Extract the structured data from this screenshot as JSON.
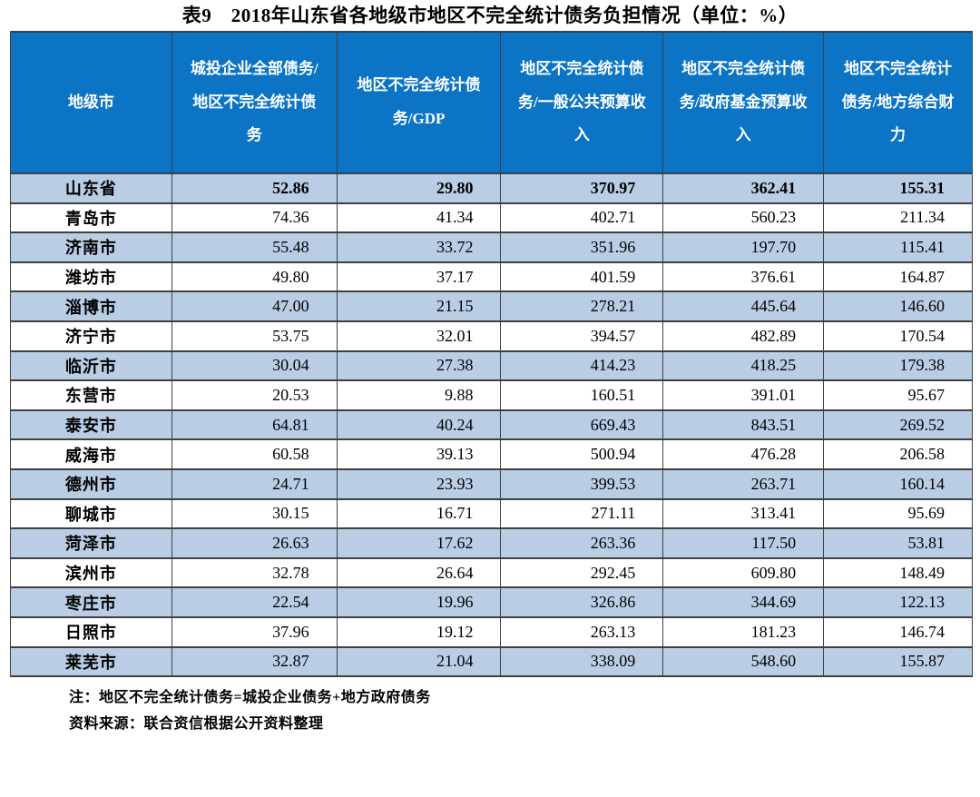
{
  "title": "表9　2018年山东省各地级市地区不完全统计债务负担情况（单位：%）",
  "table": {
    "columns": [
      "地级市",
      "城投企业全部债务/地区不完全统计债务",
      "地区不完全统计债务/GDP",
      "地区不完全统计债务/一般公共预算收入",
      "地区不完全统计债务/政府基金预算收入",
      "地区不完全统计债务/地方综合财力"
    ],
    "rows": [
      {
        "name": "山东省",
        "values": [
          "52.86",
          "29.80",
          "370.97",
          "362.41",
          "155.31"
        ],
        "bold": true
      },
      {
        "name": "青岛市",
        "values": [
          "74.36",
          "41.34",
          "402.71",
          "560.23",
          "211.34"
        ],
        "bold": false
      },
      {
        "name": "济南市",
        "values": [
          "55.48",
          "33.72",
          "351.96",
          "197.70",
          "115.41"
        ],
        "bold": false
      },
      {
        "name": "潍坊市",
        "values": [
          "49.80",
          "37.17",
          "401.59",
          "376.61",
          "164.87"
        ],
        "bold": false
      },
      {
        "name": "淄博市",
        "values": [
          "47.00",
          "21.15",
          "278.21",
          "445.64",
          "146.60"
        ],
        "bold": false
      },
      {
        "name": "济宁市",
        "values": [
          "53.75",
          "32.01",
          "394.57",
          "482.89",
          "170.54"
        ],
        "bold": false
      },
      {
        "name": "临沂市",
        "values": [
          "30.04",
          "27.38",
          "414.23",
          "418.25",
          "179.38"
        ],
        "bold": false
      },
      {
        "name": "东营市",
        "values": [
          "20.53",
          "9.88",
          "160.51",
          "391.01",
          "95.67"
        ],
        "bold": false
      },
      {
        "name": "泰安市",
        "values": [
          "64.81",
          "40.24",
          "669.43",
          "843.51",
          "269.52"
        ],
        "bold": false
      },
      {
        "name": "威海市",
        "values": [
          "60.58",
          "39.13",
          "500.94",
          "476.28",
          "206.58"
        ],
        "bold": false
      },
      {
        "name": "德州市",
        "values": [
          "24.71",
          "23.93",
          "399.53",
          "263.71",
          "160.14"
        ],
        "bold": false
      },
      {
        "name": "聊城市",
        "values": [
          "30.15",
          "16.71",
          "271.11",
          "313.41",
          "95.69"
        ],
        "bold": false
      },
      {
        "name": "菏泽市",
        "values": [
          "26.63",
          "17.62",
          "263.36",
          "117.50",
          "53.81"
        ],
        "bold": false
      },
      {
        "name": "滨州市",
        "values": [
          "32.78",
          "26.64",
          "292.45",
          "609.80",
          "148.49"
        ],
        "bold": false
      },
      {
        "name": "枣庄市",
        "values": [
          "22.54",
          "19.96",
          "326.86",
          "344.69",
          "122.13"
        ],
        "bold": false
      },
      {
        "name": "日照市",
        "values": [
          "37.96",
          "19.12",
          "263.13",
          "181.23",
          "146.74"
        ],
        "bold": false
      },
      {
        "name": "莱芜市",
        "values": [
          "32.87",
          "21.04",
          "338.09",
          "548.60",
          "155.87"
        ],
        "bold": false
      }
    ]
  },
  "notes": {
    "note1": "注：地区不完全统计债务=城投企业债务+地方政府债务",
    "note2": "资料来源：联合资信根据公开资料整理"
  },
  "colors": {
    "header_bg": "#0b74c4",
    "stripe_bg": "#b9cde4",
    "border": "#404040",
    "header_text": "#ffffff"
  },
  "chart_data": {
    "type": "table",
    "title": "表9　2018年山东省各地级市地区不完全统计债务负担情况（单位：%）",
    "categories": [
      "山东省",
      "青岛市",
      "济南市",
      "潍坊市",
      "淄博市",
      "济宁市",
      "临沂市",
      "东营市",
      "泰安市",
      "威海市",
      "德州市",
      "聊城市",
      "菏泽市",
      "滨州市",
      "枣庄市",
      "日照市",
      "莱芜市"
    ],
    "series": [
      {
        "name": "城投企业全部债务/地区不完全统计债务",
        "values": [
          52.86,
          74.36,
          55.48,
          49.8,
          47.0,
          53.75,
          30.04,
          20.53,
          64.81,
          60.58,
          24.71,
          30.15,
          26.63,
          32.78,
          22.54,
          37.96,
          32.87
        ]
      },
      {
        "name": "地区不完全统计债务/GDP",
        "values": [
          29.8,
          41.34,
          33.72,
          37.17,
          21.15,
          32.01,
          27.38,
          9.88,
          40.24,
          39.13,
          23.93,
          16.71,
          17.62,
          26.64,
          19.96,
          19.12,
          21.04
        ]
      },
      {
        "name": "地区不完全统计债务/一般公共预算收入",
        "values": [
          370.97,
          402.71,
          351.96,
          401.59,
          278.21,
          394.57,
          414.23,
          160.51,
          669.43,
          500.94,
          399.53,
          271.11,
          263.36,
          292.45,
          326.86,
          263.13,
          338.09
        ]
      },
      {
        "name": "地区不完全统计债务/政府基金预算收入",
        "values": [
          362.41,
          560.23,
          197.7,
          376.61,
          445.64,
          482.89,
          418.25,
          391.01,
          843.51,
          476.28,
          263.71,
          313.41,
          117.5,
          609.8,
          344.69,
          181.23,
          548.6
        ]
      },
      {
        "name": "地区不完全统计债务/地方综合财力",
        "values": [
          155.31,
          211.34,
          115.41,
          164.87,
          146.6,
          170.54,
          179.38,
          95.67,
          269.52,
          206.58,
          160.14,
          95.69,
          53.81,
          148.49,
          122.13,
          146.74,
          155.87
        ]
      }
    ]
  }
}
